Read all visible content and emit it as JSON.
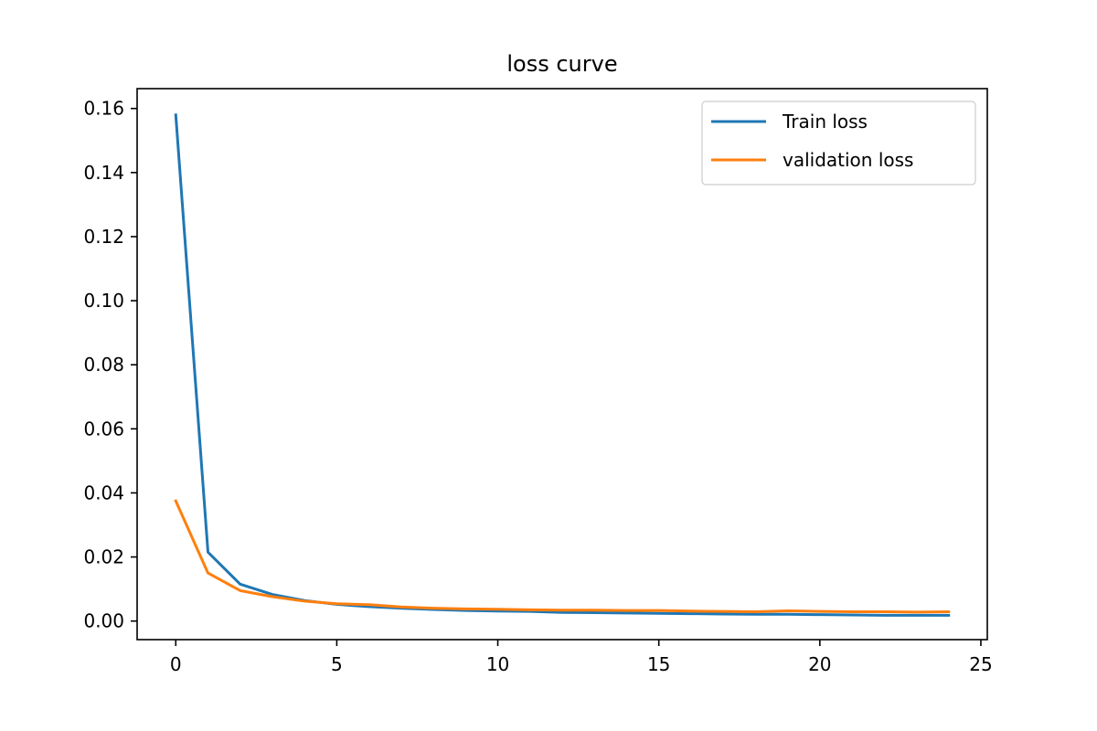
{
  "chart_data": {
    "type": "line",
    "title": "loss curve",
    "xlabel": "",
    "ylabel": "",
    "xlim": [
      -1.2,
      25.2
    ],
    "ylim": [
      -0.0058,
      0.1662
    ],
    "xticks": [
      0,
      5,
      10,
      15,
      20,
      25
    ],
    "xtick_labels": [
      "0",
      "5",
      "10",
      "15",
      "20",
      "25"
    ],
    "yticks": [
      0.0,
      0.02,
      0.04,
      0.06,
      0.08,
      0.1,
      0.12,
      0.14,
      0.16
    ],
    "ytick_labels": [
      "0.00",
      "0.02",
      "0.04",
      "0.06",
      "0.08",
      "0.10",
      "0.12",
      "0.14",
      "0.16"
    ],
    "grid": false,
    "legend_position": "top-right",
    "x": [
      0,
      1,
      2,
      3,
      4,
      5,
      6,
      7,
      8,
      9,
      10,
      11,
      12,
      13,
      14,
      15,
      16,
      17,
      18,
      19,
      20,
      21,
      22,
      23,
      24
    ],
    "series": [
      {
        "name": "Train loss",
        "color": "#1f77b4",
        "values": [
          0.158,
          0.0215,
          0.0115,
          0.0083,
          0.0064,
          0.0052,
          0.0045,
          0.004,
          0.0036,
          0.0033,
          0.0031,
          0.003,
          0.0027,
          0.0026,
          0.0025,
          0.0024,
          0.0023,
          0.0022,
          0.0021,
          0.0021,
          0.002,
          0.0019,
          0.0018,
          0.0018,
          0.0018
        ]
      },
      {
        "name": "validation loss",
        "color": "#ff7f0e",
        "values": [
          0.0375,
          0.015,
          0.0095,
          0.0076,
          0.0062,
          0.0054,
          0.0051,
          0.0044,
          0.004,
          0.0038,
          0.0037,
          0.0035,
          0.0034,
          0.0034,
          0.0033,
          0.0033,
          0.0031,
          0.003,
          0.0029,
          0.0032,
          0.003,
          0.0029,
          0.0029,
          0.0028,
          0.0029
        ]
      }
    ]
  }
}
